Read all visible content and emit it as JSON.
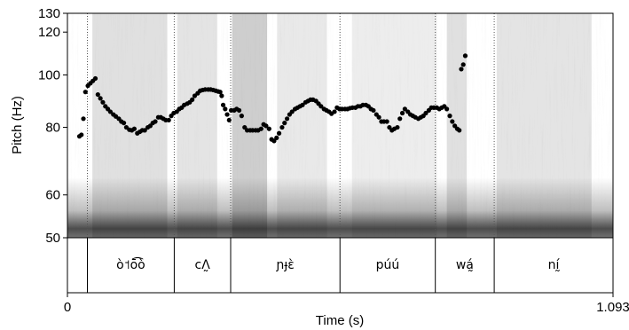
{
  "chart_data": {
    "type": "scatter",
    "title": "",
    "xlabel": "Time (s)",
    "ylabel": "Pitch (Hz)",
    "xlim": [
      0,
      1.093
    ],
    "ylim": [
      50,
      130
    ],
    "x_tick_labels": [
      "0",
      "1.093"
    ],
    "y_ticks": [
      50,
      60,
      80,
      100,
      120,
      130
    ],
    "y_tick_labels": [
      "50",
      "60",
      "80",
      "100",
      "120",
      "130"
    ],
    "scale": "log",
    "background": "spectrogram",
    "grid": false,
    "marker_color": "#000000",
    "tier": {
      "boundaries": [
        0.04,
        0.214,
        0.327,
        0.546,
        0.737,
        0.855
      ],
      "intervals": [
        {
          "start": 0.04,
          "end": 0.214,
          "label": "ò˦ō͡ò"
        },
        {
          "start": 0.214,
          "end": 0.327,
          "label": "cɅ̰"
        },
        {
          "start": 0.327,
          "end": 0.546,
          "label": "ɲɟɛ̀"
        },
        {
          "start": 0.546,
          "end": 0.737,
          "label": "púú"
        },
        {
          "start": 0.737,
          "end": 0.855,
          "label": "wá̰"
        },
        {
          "start": 0.855,
          "end": 1.093,
          "label": "nḭ́"
        }
      ]
    },
    "points": [
      [
        0.024,
        77.0
      ],
      [
        0.028,
        77.5
      ],
      [
        0.032,
        83.0
      ],
      [
        0.036,
        93.0
      ],
      [
        0.041,
        95.5
      ],
      [
        0.046,
        96.5
      ],
      [
        0.051,
        97.5
      ],
      [
        0.056,
        98.5
      ],
      [
        0.061,
        92.0
      ],
      [
        0.066,
        90.5
      ],
      [
        0.071,
        89.0
      ],
      [
        0.076,
        87.5
      ],
      [
        0.081,
        86.5
      ],
      [
        0.086,
        85.5
      ],
      [
        0.092,
        84.5
      ],
      [
        0.097,
        83.8
      ],
      [
        0.103,
        83.0
      ],
      [
        0.108,
        82.0
      ],
      [
        0.113,
        81.5
      ],
      [
        0.118,
        80.0
      ],
      [
        0.124,
        79.2
      ],
      [
        0.129,
        79.0
      ],
      [
        0.134,
        79.5
      ],
      [
        0.14,
        78.0
      ],
      [
        0.145,
        78.5
      ],
      [
        0.15,
        79.0
      ],
      [
        0.155,
        79.0
      ],
      [
        0.161,
        80.0
      ],
      [
        0.166,
        80.5
      ],
      [
        0.171,
        81.5
      ],
      [
        0.176,
        82.0
      ],
      [
        0.182,
        83.5
      ],
      [
        0.187,
        83.5
      ],
      [
        0.192,
        83.0
      ],
      [
        0.197,
        82.5
      ],
      [
        0.203,
        82.5
      ],
      [
        0.208,
        84.0
      ],
      [
        0.213,
        85.0
      ],
      [
        0.219,
        85.5
      ],
      [
        0.224,
        86.5
      ],
      [
        0.229,
        87.0
      ],
      [
        0.234,
        88.0
      ],
      [
        0.24,
        88.5
      ],
      [
        0.245,
        89.0
      ],
      [
        0.25,
        90.0
      ],
      [
        0.255,
        91.5
      ],
      [
        0.261,
        92.5
      ],
      [
        0.266,
        93.5
      ],
      [
        0.271,
        93.8
      ],
      [
        0.276,
        94.0
      ],
      [
        0.282,
        94.0
      ],
      [
        0.287,
        94.0
      ],
      [
        0.292,
        93.8
      ],
      [
        0.297,
        93.5
      ],
      [
        0.302,
        93.2
      ],
      [
        0.306,
        93.0
      ],
      [
        0.309,
        91.5
      ],
      [
        0.312,
        88.0
      ],
      [
        0.316,
        86.5
      ],
      [
        0.32,
        84.5
      ],
      [
        0.324,
        82.5
      ],
      [
        0.328,
        86.0
      ],
      [
        0.334,
        86.0
      ],
      [
        0.339,
        86.5
      ],
      [
        0.344,
        86.0
      ],
      [
        0.349,
        84.0
      ],
      [
        0.355,
        80.0
      ],
      [
        0.36,
        79.0
      ],
      [
        0.366,
        79.0
      ],
      [
        0.371,
        79.0
      ],
      [
        0.377,
        79.0
      ],
      [
        0.382,
        79.0
      ],
      [
        0.388,
        79.5
      ],
      [
        0.393,
        81.0
      ],
      [
        0.398,
        80.5
      ],
      [
        0.404,
        79.5
      ],
      [
        0.409,
        76.0
      ],
      [
        0.414,
        75.5
      ],
      [
        0.419,
        76.5
      ],
      [
        0.424,
        78.0
      ],
      [
        0.43,
        80.0
      ],
      [
        0.435,
        81.5
      ],
      [
        0.44,
        83.0
      ],
      [
        0.445,
        84.5
      ],
      [
        0.45,
        85.5
      ],
      [
        0.456,
        86.5
      ],
      [
        0.461,
        87.0
      ],
      [
        0.466,
        87.5
      ],
      [
        0.471,
        88.0
      ],
      [
        0.477,
        89.0
      ],
      [
        0.482,
        89.5
      ],
      [
        0.487,
        90.0
      ],
      [
        0.492,
        90.0
      ],
      [
        0.498,
        89.5
      ],
      [
        0.503,
        88.5
      ],
      [
        0.508,
        87.5
      ],
      [
        0.514,
        86.5
      ],
      [
        0.519,
        86.0
      ],
      [
        0.524,
        85.5
      ],
      [
        0.529,
        84.8
      ],
      [
        0.535,
        85.5
      ],
      [
        0.54,
        87.0
      ],
      [
        0.545,
        86.5
      ],
      [
        0.55,
        86.5
      ],
      [
        0.556,
        86.5
      ],
      [
        0.561,
        86.5
      ],
      [
        0.566,
        86.8
      ],
      [
        0.571,
        87.0
      ],
      [
        0.577,
        87.0
      ],
      [
        0.582,
        87.5
      ],
      [
        0.587,
        87.5
      ],
      [
        0.592,
        88.0
      ],
      [
        0.598,
        88.0
      ],
      [
        0.603,
        87.5
      ],
      [
        0.608,
        86.5
      ],
      [
        0.613,
        86.0
      ],
      [
        0.619,
        84.5
      ],
      [
        0.624,
        83.5
      ],
      [
        0.629,
        82.0
      ],
      [
        0.634,
        82.0
      ],
      [
        0.64,
        82.0
      ],
      [
        0.645,
        80.0
      ],
      [
        0.65,
        79.0
      ],
      [
        0.655,
        79.5
      ],
      [
        0.661,
        80.0
      ],
      [
        0.666,
        83.0
      ],
      [
        0.671,
        85.0
      ],
      [
        0.676,
        86.5
      ],
      [
        0.682,
        85.5
      ],
      [
        0.687,
        84.5
      ],
      [
        0.692,
        84.0
      ],
      [
        0.697,
        83.5
      ],
      [
        0.703,
        83.0
      ],
      [
        0.708,
        83.5
      ],
      [
        0.713,
        84.0
      ],
      [
        0.718,
        85.0
      ],
      [
        0.724,
        86.0
      ],
      [
        0.729,
        87.0
      ],
      [
        0.734,
        87.0
      ],
      [
        0.74,
        87.0
      ],
      [
        0.745,
        86.5
      ],
      [
        0.75,
        87.0
      ],
      [
        0.755,
        87.5
      ],
      [
        0.76,
        86.5
      ],
      [
        0.766,
        84.0
      ],
      [
        0.771,
        82.0
      ],
      [
        0.776,
        80.5
      ],
      [
        0.781,
        79.5
      ],
      [
        0.785,
        79.0
      ],
      [
        0.789,
        102.5
      ],
      [
        0.793,
        104.5
      ],
      [
        0.797,
        108.5
      ]
    ]
  }
}
